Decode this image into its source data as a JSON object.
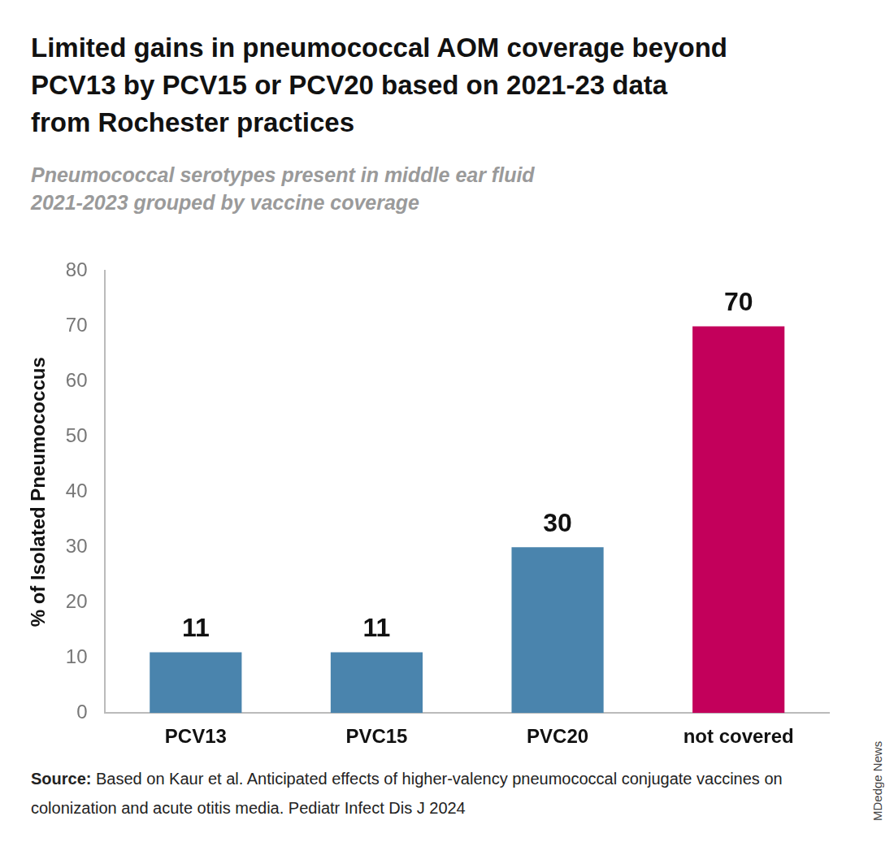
{
  "chart_data": {
    "type": "bar",
    "title": [
      "Limited gains in pneumococcal AOM coverage beyond",
      "PCV13 by PCV15 or PCV20 based on 2021-23 data",
      "from Rochester practices"
    ],
    "subtitle": [
      "Pneumococcal serotypes present in middle ear fluid",
      "2021-2023 grouped by vaccine coverage"
    ],
    "ylabel": "% of Isolated Pneumococcus",
    "categories": [
      "PCV13",
      "PVC15",
      "PVC20",
      "not covered"
    ],
    "values": [
      11,
      11,
      30,
      70
    ],
    "colors": [
      "#4a84ad",
      "#4a84ad",
      "#4a84ad",
      "#c3005b"
    ],
    "ylim": [
      0,
      80
    ],
    "yticks": [
      0,
      10,
      20,
      30,
      40,
      50,
      60,
      70,
      80
    ],
    "grid": false,
    "data_labels": true,
    "source_label": "Source:",
    "source": "Based on Kaur et al. Anticipated effects of higher-valency pneumococcal conjugate vaccines on colonization and acute otitis media. Pediatr Infect Dis J 2024",
    "credit": "MDedge News"
  }
}
